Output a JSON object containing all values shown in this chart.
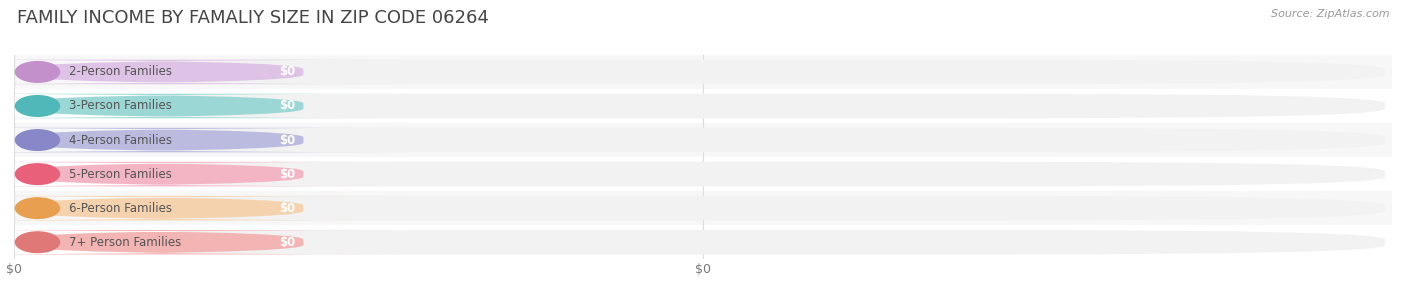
{
  "title": "FAMILY INCOME BY FAMALIY SIZE IN ZIP CODE 06264",
  "source": "Source: ZipAtlas.com",
  "categories": [
    "2-Person Families",
    "3-Person Families",
    "4-Person Families",
    "5-Person Families",
    "6-Person Families",
    "7+ Person Families"
  ],
  "values": [
    0,
    0,
    0,
    0,
    0,
    0
  ],
  "bar_colors": [
    "#d8b4e2",
    "#7ececa",
    "#a9a9d9",
    "#f4a0b5",
    "#f5c897",
    "#f4a0a0"
  ],
  "dot_colors": [
    "#c490cc",
    "#50b8b8",
    "#8888c8",
    "#e8607a",
    "#e8a050",
    "#e07878"
  ],
  "label_values": [
    "$0",
    "$0",
    "$0",
    "$0",
    "$0",
    "$0"
  ],
  "background_color": "#ffffff",
  "bar_bg_color": "#f2f2f2",
  "row_even_color": "#f7f7f7",
  "row_odd_color": "#ffffff",
  "title_fontsize": 13,
  "label_fontsize": 8.5,
  "value_fontsize": 8.5,
  "source_fontsize": 8,
  "x_tick_positions": [
    0.0,
    0.5
  ],
  "x_tick_labels": [
    "$0",
    "$0"
  ],
  "grid_color": "#dddddd"
}
